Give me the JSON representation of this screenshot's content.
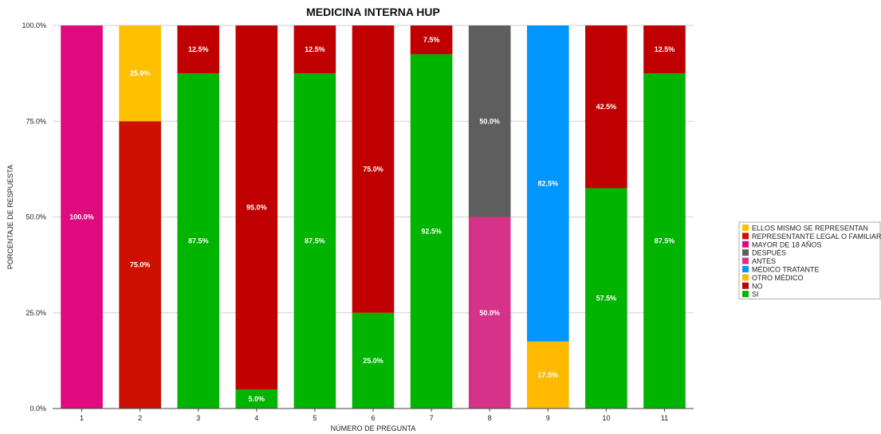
{
  "chart_data": {
    "type": "bar",
    "stacked": true,
    "title": "MEDICINA INTERNA HUP",
    "xlabel": "NÚMERO DE PREGUNTA",
    "ylabel": "PORCENTAJE DE RESPUESTA",
    "ylim": [
      0,
      100
    ],
    "y_ticks": [
      "0.0%",
      "25.0%",
      "50.0%",
      "75.0%",
      "100.0%"
    ],
    "grid": true,
    "legend_position": "right",
    "categories": [
      "1",
      "2",
      "3",
      "4",
      "5",
      "6",
      "7",
      "8",
      "9",
      "10",
      "11"
    ],
    "series": [
      {
        "name": "ELLOS MISMO SE REPRESENTAN",
        "color": "#FFC000",
        "values": [
          0,
          25,
          0,
          0,
          0,
          0,
          0,
          0,
          0,
          0,
          0
        ]
      },
      {
        "name": "REPRESENTANTE LEGAL O FAMILIAR",
        "color": "#CC1100",
        "values": [
          0,
          75,
          0,
          0,
          0,
          0,
          0,
          0,
          0,
          0,
          0
        ]
      },
      {
        "name": "MAYOR DE 18 AÑOS",
        "color": "#DE0A7E",
        "values": [
          100,
          0,
          0,
          0,
          0,
          0,
          0,
          0,
          0,
          0,
          0
        ]
      },
      {
        "name": "DESPUÉS",
        "color": "#5E5E5E",
        "values": [
          0,
          0,
          0,
          0,
          0,
          0,
          0,
          50,
          0,
          0,
          0
        ]
      },
      {
        "name": "ANTES",
        "color": "#D6328A",
        "values": [
          0,
          0,
          0,
          0,
          0,
          0,
          0,
          50,
          0,
          0,
          0
        ]
      },
      {
        "name": "MÉDICO TRATANTE",
        "color": "#0096FF",
        "values": [
          0,
          0,
          0,
          0,
          0,
          0,
          0,
          0,
          82.5,
          0,
          0
        ]
      },
      {
        "name": "OTRO MÉDICO",
        "color": "#FFBA00",
        "values": [
          0,
          0,
          0,
          0,
          0,
          0,
          0,
          0,
          17.5,
          0,
          0
        ]
      },
      {
        "name": "NO",
        "color": "#C00000",
        "values": [
          0,
          0,
          12.5,
          95,
          12.5,
          75,
          7.5,
          0,
          0,
          42.5,
          12.5
        ]
      },
      {
        "name": "SI",
        "color": "#00B400",
        "values": [
          0,
          0,
          87.5,
          5,
          87.5,
          25,
          92.5,
          0,
          0,
          57.5,
          87.5
        ]
      }
    ],
    "stack_order": [
      "SI",
      "NO",
      "OTRO MÉDICO",
      "MÉDICO TRATANTE",
      "ANTES",
      "DESPUÉS",
      "MAYOR DE 18 AÑOS",
      "REPRESENTANTE LEGAL O FAMILIAR",
      "ELLOS MISMO SE REPRESENTAN"
    ]
  }
}
